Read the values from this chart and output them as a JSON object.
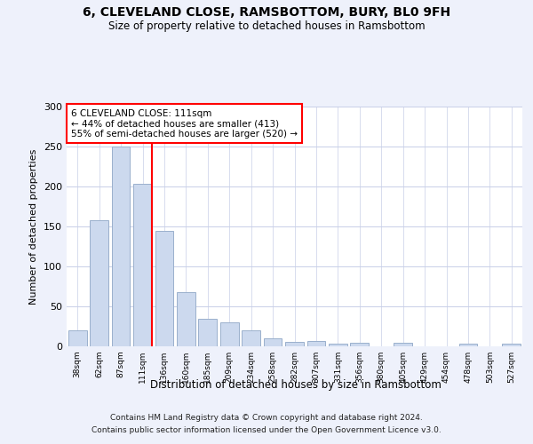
{
  "title1": "6, CLEVELAND CLOSE, RAMSBOTTOM, BURY, BL0 9FH",
  "title2": "Size of property relative to detached houses in Ramsbottom",
  "xlabel": "Distribution of detached houses by size in Ramsbottom",
  "ylabel": "Number of detached properties",
  "categories": [
    "38sqm",
    "62sqm",
    "87sqm",
    "111sqm",
    "136sqm",
    "160sqm",
    "185sqm",
    "209sqm",
    "234sqm",
    "258sqm",
    "282sqm",
    "307sqm",
    "331sqm",
    "356sqm",
    "380sqm",
    "405sqm",
    "429sqm",
    "454sqm",
    "478sqm",
    "503sqm",
    "527sqm"
  ],
  "values": [
    20,
    158,
    250,
    203,
    145,
    68,
    35,
    30,
    20,
    10,
    6,
    7,
    3,
    5,
    0,
    4,
    0,
    0,
    3,
    0,
    3
  ],
  "bar_color": "#ccd9ee",
  "bar_edge_color": "#9ab0cc",
  "redline_index": 3,
  "annotation_box_text": "6 CLEVELAND CLOSE: 111sqm\n← 44% of detached houses are smaller (413)\n55% of semi-detached houses are larger (520) →",
  "footer_line1": "Contains HM Land Registry data © Crown copyright and database right 2024.",
  "footer_line2": "Contains public sector information licensed under the Open Government Licence v3.0.",
  "ylim": [
    0,
    300
  ],
  "bg_color": "#eef1fb",
  "plot_bg_color": "#ffffff",
  "grid_color": "#c8cfe8"
}
